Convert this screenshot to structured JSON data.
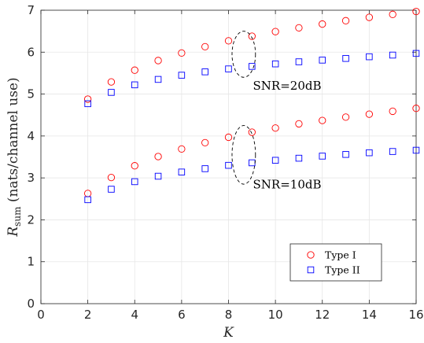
{
  "chart_data": {
    "type": "scatter",
    "xlabel": "K",
    "ylabel": "R_sum (nats/channel use)",
    "ylabel_main": "R",
    "ylabel_sub": "sum",
    "ylabel_rest": " (nats/channel use)",
    "xlim": [
      0,
      16
    ],
    "ylim": [
      0,
      7
    ],
    "xticks": [
      0,
      2,
      4,
      6,
      8,
      10,
      12,
      14,
      16
    ],
    "yticks": [
      0,
      1,
      2,
      3,
      4,
      5,
      6,
      7
    ],
    "grid": true,
    "legend_position": "bottom-right",
    "x": [
      2,
      3,
      4,
      5,
      6,
      7,
      8,
      9,
      10,
      11,
      12,
      13,
      14,
      15,
      16
    ],
    "series": [
      {
        "name": "Type I",
        "group": "SNR=20dB",
        "marker": "circle",
        "color": "#ff0000",
        "values": [
          4.88,
          5.29,
          5.57,
          5.8,
          5.98,
          6.13,
          6.27,
          6.38,
          6.49,
          6.58,
          6.67,
          6.75,
          6.83,
          6.9,
          6.97
        ]
      },
      {
        "name": "Type II",
        "group": "SNR=20dB",
        "marker": "square",
        "color": "#0000ff",
        "values": [
          4.77,
          5.04,
          5.22,
          5.35,
          5.45,
          5.53,
          5.6,
          5.66,
          5.72,
          5.77,
          5.81,
          5.85,
          5.89,
          5.93,
          5.97
        ]
      },
      {
        "name": "Type I",
        "group": "SNR=10dB",
        "marker": "circle",
        "color": "#ff0000",
        "values": [
          2.63,
          3.01,
          3.29,
          3.51,
          3.69,
          3.84,
          3.97,
          4.09,
          4.19,
          4.29,
          4.37,
          4.45,
          4.52,
          4.59,
          4.66
        ]
      },
      {
        "name": "Type II",
        "group": "SNR=10dB",
        "marker": "square",
        "color": "#0000ff",
        "values": [
          2.48,
          2.73,
          2.91,
          3.04,
          3.14,
          3.22,
          3.3,
          3.36,
          3.42,
          3.47,
          3.52,
          3.56,
          3.6,
          3.63,
          3.66
        ]
      }
    ],
    "annotations": [
      {
        "text": "SNR=20dB",
        "x": 10.5,
        "y": 5.1,
        "ellipse": {
          "cx": 8.65,
          "cy": 5.95,
          "rx": 0.5,
          "ry": 0.55
        }
      },
      {
        "text": "SNR=10dB",
        "x": 10.5,
        "y": 2.75,
        "ellipse": {
          "cx": 8.65,
          "cy": 3.55,
          "rx": 0.5,
          "ry": 0.7
        }
      }
    ],
    "legend": [
      {
        "label": "Type I",
        "marker": "circle",
        "color": "#ff0000"
      },
      {
        "label": "Type II",
        "marker": "square",
        "color": "#0000ff"
      }
    ]
  }
}
